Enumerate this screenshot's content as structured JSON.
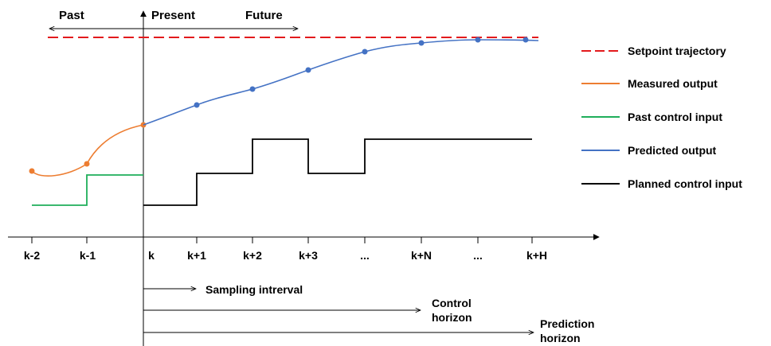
{
  "region_labels": {
    "past": "Past",
    "present": "Present",
    "future": "Future"
  },
  "axis_ticks": [
    "k-2",
    "k-1",
    "k",
    "k+1",
    "k+2",
    "k+3",
    "...",
    "k+N",
    "...",
    "k+H"
  ],
  "horizons": {
    "sampling": "Sampling intrerval",
    "control_line1": "Control",
    "control_line2": "horizon",
    "prediction_line1": "Prediction",
    "prediction_line2": "horizon"
  },
  "legend": [
    {
      "label": "Setpoint trajectory",
      "color": "#e31a1c",
      "style": "dashed"
    },
    {
      "label": "Measured output",
      "color": "#ed7d31",
      "style": "solid"
    },
    {
      "label": "Past control input",
      "color": "#1fae5a",
      "style": "solid"
    },
    {
      "label": "Predicted output",
      "color": "#4472c4",
      "style": "solid"
    },
    {
      "label": "Planned control input",
      "color": "#000000",
      "style": "solid"
    }
  ]
}
